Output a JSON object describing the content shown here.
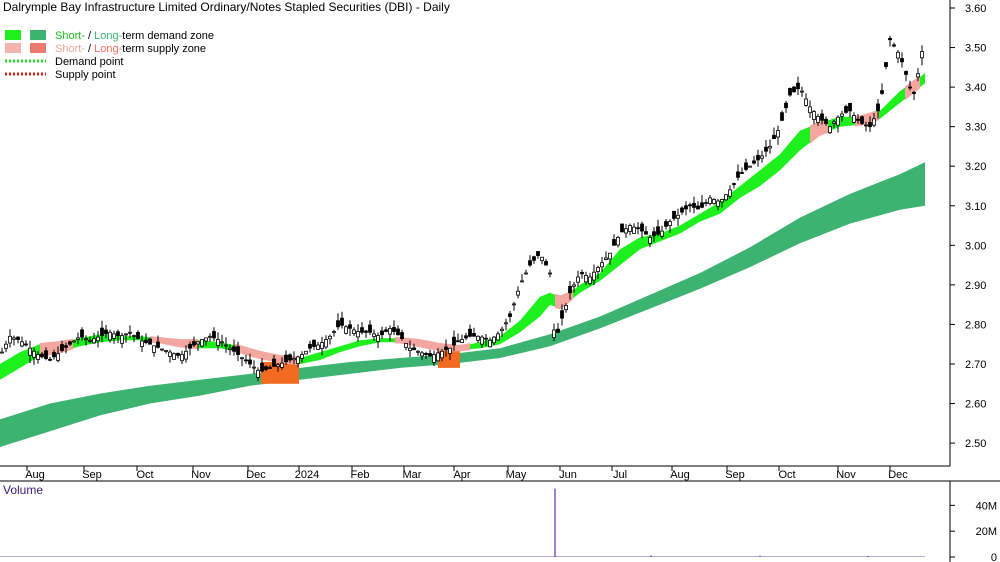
{
  "colors": {
    "short_demand": "#1ef01e",
    "long_demand": "#3cb371",
    "short_supply": "#f4a6a0",
    "long_supply": "#f07060",
    "supply_zone_fill": "#f26b21",
    "demand_point": "#22dd22",
    "supply_point": "#dd2222",
    "candle": "#000000",
    "volume": "#5a3aa8",
    "volume_axis_text": "#000000"
  },
  "chart_data": {
    "type": "candlestick",
    "title": "Dalrymple Bay Infrastructure Limited Ordinary/Notes Stapled Securities (DBI) - Daily",
    "legend": [
      {
        "id": "demand-zone",
        "parts": [
          {
            "text": "Short-",
            "color": "#1ebe1e"
          },
          {
            "text": " / ",
            "color": "#000000"
          },
          {
            "text": "Long-",
            "color": "#3cb371"
          },
          {
            "text": "term demand zone",
            "color": "#000000"
          }
        ]
      },
      {
        "id": "supply-zone",
        "parts": [
          {
            "text": "Short-",
            "color": "#f4a6a0"
          },
          {
            "text": " / ",
            "color": "#000000"
          },
          {
            "text": "Long-",
            "color": "#f07060"
          },
          {
            "text": "term supply zone",
            "color": "#000000"
          }
        ]
      },
      {
        "id": "demand-point",
        "parts": [
          {
            "text": "Demand point",
            "color": "#000000"
          }
        ]
      },
      {
        "id": "supply-point",
        "parts": [
          {
            "text": "Supply point",
            "color": "#000000"
          }
        ]
      }
    ],
    "y_axis": {
      "ticks": [
        "2.50",
        "2.60",
        "2.70",
        "2.80",
        "2.90",
        "3.00",
        "3.10",
        "3.20",
        "3.30",
        "3.40",
        "3.50",
        "3.60"
      ],
      "range": [
        2.46,
        3.62
      ]
    },
    "x_axis": {
      "labels": [
        "Aug",
        "Sep",
        "Oct",
        "Nov",
        "Dec",
        "2024",
        "Feb",
        "Mar",
        "Apr",
        "May",
        "Jun",
        "Jul",
        "Aug",
        "Sep",
        "Oct",
        "Nov",
        "Dec"
      ]
    },
    "price_path": [
      [
        0,
        2.72
      ],
      [
        10,
        2.77
      ],
      [
        20,
        2.76
      ],
      [
        30,
        2.74
      ],
      [
        40,
        2.72
      ],
      [
        50,
        2.71
      ],
      [
        60,
        2.73
      ],
      [
        70,
        2.75
      ],
      [
        80,
        2.77
      ],
      [
        90,
        2.76
      ],
      [
        100,
        2.77
      ],
      [
        110,
        2.78
      ],
      [
        120,
        2.77
      ],
      [
        130,
        2.78
      ],
      [
        140,
        2.76
      ],
      [
        150,
        2.75
      ],
      [
        160,
        2.74
      ],
      [
        170,
        2.73
      ],
      [
        180,
        2.72
      ],
      [
        190,
        2.74
      ],
      [
        200,
        2.76
      ],
      [
        210,
        2.77
      ],
      [
        220,
        2.76
      ],
      [
        230,
        2.74
      ],
      [
        240,
        2.72
      ],
      [
        250,
        2.7
      ],
      [
        260,
        2.68
      ],
      [
        270,
        2.69
      ],
      [
        280,
        2.7
      ],
      [
        290,
        2.71
      ],
      [
        300,
        2.72
      ],
      [
        310,
        2.74
      ],
      [
        320,
        2.75
      ],
      [
        330,
        2.77
      ],
      [
        340,
        2.8
      ],
      [
        350,
        2.79
      ],
      [
        360,
        2.78
      ],
      [
        370,
        2.78
      ],
      [
        380,
        2.77
      ],
      [
        390,
        2.79
      ],
      [
        400,
        2.77
      ],
      [
        410,
        2.74
      ],
      [
        420,
        2.73
      ],
      [
        430,
        2.72
      ],
      [
        440,
        2.73
      ],
      [
        450,
        2.74
      ],
      [
        460,
        2.76
      ],
      [
        470,
        2.77
      ],
      [
        480,
        2.77
      ],
      [
        490,
        2.76
      ],
      [
        500,
        2.78
      ],
      [
        510,
        2.82
      ],
      [
        520,
        2.9
      ],
      [
        530,
        2.95
      ],
      [
        540,
        2.98
      ],
      [
        550,
        2.93
      ],
      [
        555,
        2.75
      ],
      [
        560,
        2.8
      ],
      [
        570,
        2.88
      ],
      [
        580,
        2.93
      ],
      [
        590,
        2.92
      ],
      [
        600,
        2.95
      ],
      [
        610,
        2.98
      ],
      [
        620,
        3.03
      ],
      [
        630,
        3.05
      ],
      [
        640,
        3.04
      ],
      [
        650,
        3.02
      ],
      [
        660,
        3.03
      ],
      [
        670,
        3.06
      ],
      [
        680,
        3.08
      ],
      [
        690,
        3.1
      ],
      [
        700,
        3.09
      ],
      [
        710,
        3.12
      ],
      [
        720,
        3.11
      ],
      [
        730,
        3.14
      ],
      [
        740,
        3.18
      ],
      [
        750,
        3.2
      ],
      [
        760,
        3.22
      ],
      [
        770,
        3.25
      ],
      [
        780,
        3.3
      ],
      [
        790,
        3.38
      ],
      [
        800,
        3.4
      ],
      [
        810,
        3.35
      ],
      [
        820,
        3.32
      ],
      [
        830,
        3.3
      ],
      [
        840,
        3.33
      ],
      [
        850,
        3.34
      ],
      [
        860,
        3.31
      ],
      [
        870,
        3.3
      ],
      [
        880,
        3.35
      ],
      [
        890,
        3.52
      ],
      [
        900,
        3.48
      ],
      [
        910,
        3.4
      ],
      [
        915,
        3.38
      ],
      [
        920,
        3.47
      ],
      [
        925,
        3.52
      ]
    ],
    "short_zone": [
      [
        0,
        2.66,
        2.7
      ],
      [
        20,
        2.69,
        2.73
      ],
      [
        40,
        2.72,
        2.75
      ],
      [
        60,
        2.73,
        2.755
      ],
      [
        80,
        2.745,
        2.765
      ],
      [
        100,
        2.755,
        2.775
      ],
      [
        120,
        2.76,
        2.77
      ],
      [
        140,
        2.76,
        2.77
      ],
      [
        160,
        2.755,
        2.765
      ],
      [
        180,
        2.745,
        2.76
      ],
      [
        200,
        2.74,
        2.76
      ],
      [
        220,
        2.74,
        2.755
      ],
      [
        240,
        2.73,
        2.745
      ],
      [
        260,
        2.715,
        2.73
      ],
      [
        280,
        2.705,
        2.72
      ],
      [
        300,
        2.7,
        2.715
      ],
      [
        320,
        2.71,
        2.73
      ],
      [
        340,
        2.73,
        2.745
      ],
      [
        360,
        2.745,
        2.76
      ],
      [
        380,
        2.755,
        2.765
      ],
      [
        400,
        2.755,
        2.765
      ],
      [
        420,
        2.745,
        2.76
      ],
      [
        440,
        2.735,
        2.75
      ],
      [
        460,
        2.735,
        2.745
      ],
      [
        480,
        2.74,
        2.755
      ],
      [
        500,
        2.75,
        2.77
      ],
      [
        520,
        2.78,
        2.81
      ],
      [
        540,
        2.82,
        2.87
      ],
      [
        550,
        2.85,
        2.88
      ],
      [
        560,
        2.84,
        2.87
      ],
      [
        570,
        2.86,
        2.88
      ],
      [
        580,
        2.88,
        2.9
      ],
      [
        600,
        2.91,
        2.93
      ],
      [
        620,
        2.95,
        2.99
      ],
      [
        640,
        2.99,
        3.02
      ],
      [
        660,
        3.01,
        3.03
      ],
      [
        680,
        3.03,
        3.05
      ],
      [
        700,
        3.06,
        3.08
      ],
      [
        720,
        3.08,
        3.11
      ],
      [
        740,
        3.12,
        3.15
      ],
      [
        760,
        3.15,
        3.19
      ],
      [
        780,
        3.19,
        3.23
      ],
      [
        800,
        3.24,
        3.29
      ],
      [
        820,
        3.28,
        3.31
      ],
      [
        840,
        3.3,
        3.325
      ],
      [
        860,
        3.305,
        3.325
      ],
      [
        880,
        3.32,
        3.34
      ],
      [
        900,
        3.36,
        3.39
      ],
      [
        925,
        3.41,
        3.435
      ]
    ],
    "long_zone": [
      [
        0,
        2.49,
        2.56
      ],
      [
        50,
        2.53,
        2.6
      ],
      [
        100,
        2.57,
        2.625
      ],
      [
        150,
        2.6,
        2.645
      ],
      [
        200,
        2.62,
        2.66
      ],
      [
        250,
        2.645,
        2.675
      ],
      [
        300,
        2.66,
        2.69
      ],
      [
        350,
        2.675,
        2.705
      ],
      [
        400,
        2.69,
        2.715
      ],
      [
        450,
        2.7,
        2.725
      ],
      [
        500,
        2.715,
        2.74
      ],
      [
        550,
        2.745,
        2.775
      ],
      [
        600,
        2.79,
        2.82
      ],
      [
        650,
        2.84,
        2.875
      ],
      [
        700,
        2.89,
        2.93
      ],
      [
        750,
        2.945,
        2.995
      ],
      [
        800,
        3.005,
        3.07
      ],
      [
        850,
        3.055,
        3.13
      ],
      [
        900,
        3.09,
        3.18
      ],
      [
        925,
        3.1,
        3.21
      ]
    ],
    "supply_periods": [
      [
        270,
        300
      ],
      [
        445,
        470
      ]
    ],
    "supply_segments": [
      [
        40,
        75
      ],
      [
        150,
        200
      ],
      [
        235,
        300
      ],
      [
        395,
        470
      ],
      [
        555,
        575
      ],
      [
        810,
        830
      ],
      [
        855,
        880
      ],
      [
        905,
        920
      ]
    ],
    "supply_zone_boxes": [
      [
        261,
        299,
        2.65,
        2.705
      ],
      [
        438,
        460,
        2.69,
        2.735
      ]
    ],
    "volume": {
      "title": "Volume",
      "ticks": [
        "0",
        "20M",
        "40M"
      ],
      "range": [
        0,
        55
      ],
      "baseline": 0.6,
      "spikes": [
        [
          555,
          53
        ],
        [
          651,
          1.2
        ],
        [
          760,
          0.9
        ],
        [
          868,
          0.8
        ]
      ]
    }
  }
}
